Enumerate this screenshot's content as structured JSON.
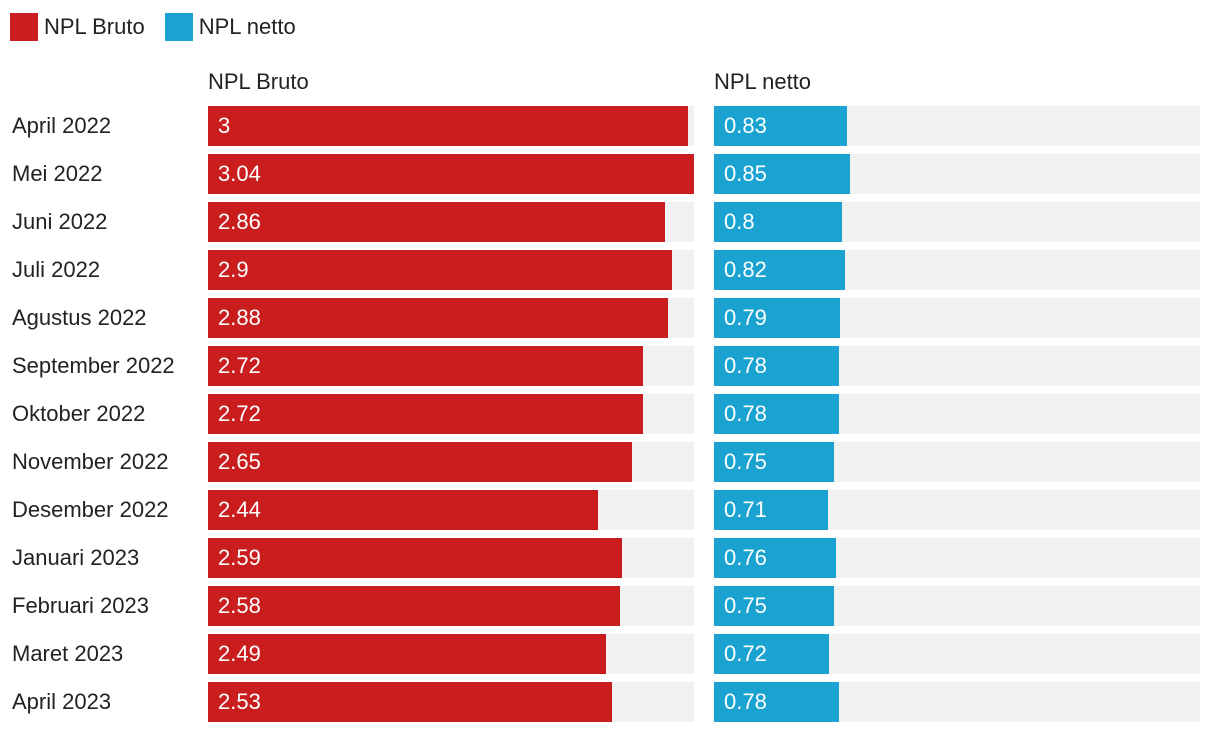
{
  "legend": {
    "items": [
      {
        "label": "NPL Bruto",
        "color": "#c91d1e"
      },
      {
        "label": "NPL netto",
        "color": "#1aa3d1"
      }
    ]
  },
  "panels": {
    "bruto_title": "NPL Bruto",
    "netto_title": "NPL netto"
  },
  "chart_data": {
    "type": "bar",
    "orientation": "horizontal",
    "layout": "small-multiples",
    "categories": [
      "April 2022",
      "Mei 2022",
      "Juni 2022",
      "Juli 2022",
      "Agustus 2022",
      "September 2022",
      "Oktober 2022",
      "November 2022",
      "Desember 2022",
      "Januari 2023",
      "Februari 2023",
      "Maret 2023",
      "April 2023"
    ],
    "series": [
      {
        "name": "NPL Bruto",
        "color": "#c91d1e",
        "values": [
          3,
          3.04,
          2.86,
          2.9,
          2.88,
          2.72,
          2.72,
          2.65,
          2.44,
          2.59,
          2.58,
          2.49,
          2.53
        ],
        "labels": [
          "3",
          "3.04",
          "2.86",
          "2.9",
          "2.88",
          "2.72",
          "2.72",
          "2.65",
          "2.44",
          "2.59",
          "2.58",
          "2.49",
          "2.53"
        ],
        "xlim": [
          0,
          3.04
        ]
      },
      {
        "name": "NPL netto",
        "color": "#1aa3d1",
        "values": [
          0.83,
          0.85,
          0.8,
          0.82,
          0.79,
          0.78,
          0.78,
          0.75,
          0.71,
          0.76,
          0.75,
          0.72,
          0.78
        ],
        "labels": [
          "0.83",
          "0.85",
          "0.8",
          "0.82",
          "0.79",
          "0.78",
          "0.78",
          "0.75",
          "0.71",
          "0.76",
          "0.75",
          "0.72",
          "0.78"
        ],
        "xlim": [
          0,
          3.04
        ]
      }
    ],
    "title": "",
    "legend_position": "top-left",
    "grid": false,
    "track_color": "#f2f2f2"
  }
}
